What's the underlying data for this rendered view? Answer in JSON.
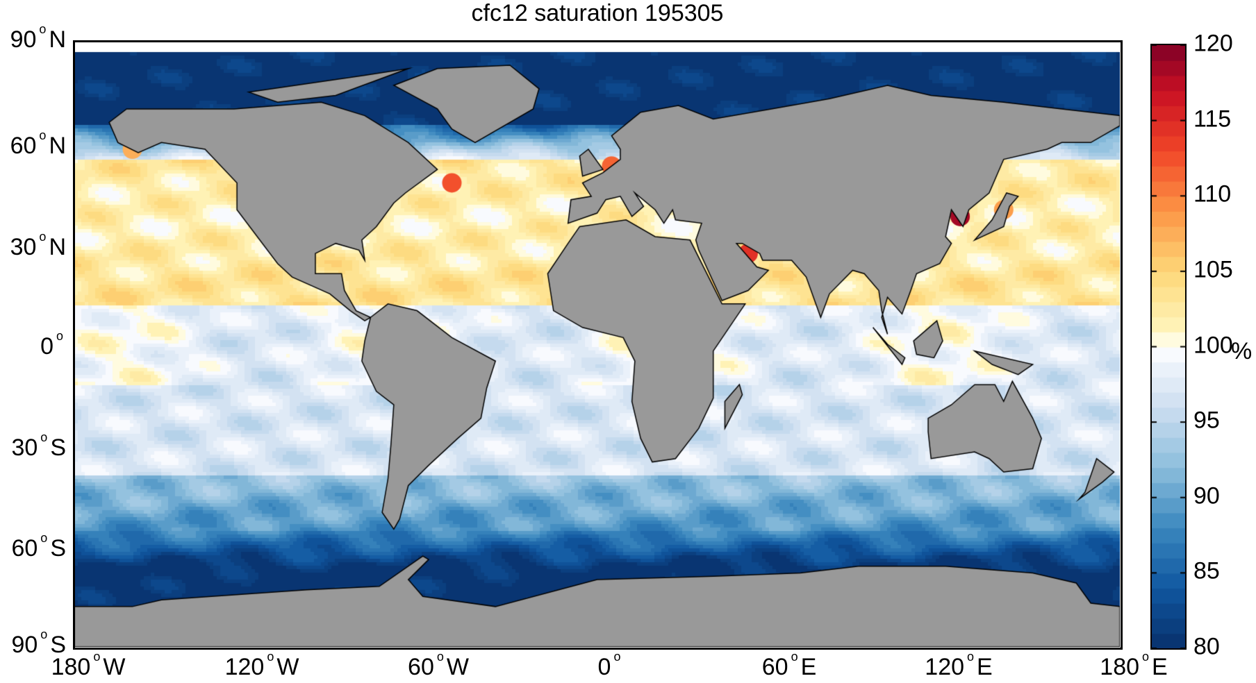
{
  "title": "cfc12 saturation 195305",
  "chart_data": {
    "type": "heatmap",
    "title": "cfc12 saturation 195305",
    "projection": "equirectangular",
    "x_ticks": [
      "180° W",
      "120° W",
      "60° W",
      "0°",
      "60° E",
      "120° E",
      "180° E"
    ],
    "y_ticks": [
      "90° N",
      "60° N",
      "30° N",
      "0°",
      "30° S",
      "60° S",
      "90° S"
    ],
    "x_range": [
      -180,
      180
    ],
    "y_range": [
      -90,
      90
    ],
    "land_color": "#999999",
    "colorbar": {
      "range": [
        80,
        120
      ],
      "levels": 40,
      "ticks": [
        "120",
        "115",
        "110",
        "105",
        "100",
        "95",
        "90",
        "85",
        "80"
      ],
      "unit": "%",
      "colormap": "reversed red-yellow-blue",
      "low_color": "#08306b",
      "mid_color": "#ffffff",
      "high_color": "#800026"
    },
    "notes_visible_pattern": {
      "arctic": 80,
      "southern_ocean_high_lat": 80,
      "subtropical_north": 103,
      "equatorial": 99,
      "southern_midlat": 93
    }
  },
  "lat_labels": [
    {
      "num": "90",
      "hemi": "N"
    },
    {
      "num": "60",
      "hemi": "N"
    },
    {
      "num": "30",
      "hemi": "N"
    },
    {
      "num": "0",
      "hemi": ""
    },
    {
      "num": "30",
      "hemi": "S"
    },
    {
      "num": "60",
      "hemi": "S"
    },
    {
      "num": "90",
      "hemi": "S"
    }
  ],
  "lon_labels": [
    {
      "num": "180",
      "hemi": "W"
    },
    {
      "num": "120",
      "hemi": "W"
    },
    {
      "num": "60",
      "hemi": "W"
    },
    {
      "num": "0",
      "hemi": ""
    },
    {
      "num": "60",
      "hemi": "E"
    },
    {
      "num": "120",
      "hemi": "E"
    },
    {
      "num": "180",
      "hemi": "E"
    }
  ]
}
